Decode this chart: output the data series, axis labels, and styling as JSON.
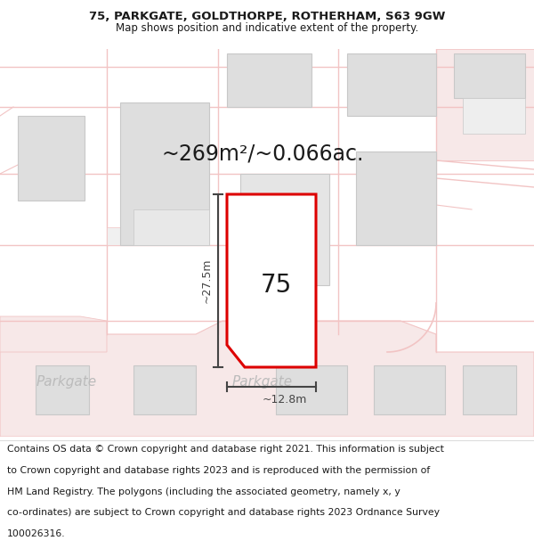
{
  "title_line1": "75, PARKGATE, GOLDTHORPE, ROTHERHAM, S63 9GW",
  "title_line2": "Map shows position and indicative extent of the property.",
  "area_text": "~269m²/~0.066ac.",
  "label_75": "75",
  "dim_height": "~27.5m",
  "dim_width": "~12.8m",
  "street_label1": "Parkgate",
  "street_label2": "Parkgate",
  "footer_lines": [
    "Contains OS data © Crown copyright and database right 2021. This information is subject",
    "to Crown copyright and database rights 2023 and is reproduced with the permission of",
    "HM Land Registry. The polygons (including the associated geometry, namely x, y",
    "co-ordinates) are subject to Crown copyright and database rights 2023 Ordnance Survey",
    "100026316."
  ],
  "bg_color": "#ffffff",
  "map_bg": "#ffffff",
  "road_color": "#f2c4c4",
  "road_fill": "#f7e8e8",
  "building_fill": "#dedede",
  "building_edge": "#c8c8c8",
  "highlight_color": "#dd0000",
  "highlight_fill": "#ffffff",
  "dim_color": "#444444",
  "text_color": "#1a1a1a",
  "street_text_color": "#bbbbbb",
  "title_fontsize": 9.5,
  "subtitle_fontsize": 8.5,
  "area_fontsize": 17,
  "label_fontsize": 20,
  "dim_fontsize": 9,
  "footer_fontsize": 7.8,
  "street_fontsize": 11
}
